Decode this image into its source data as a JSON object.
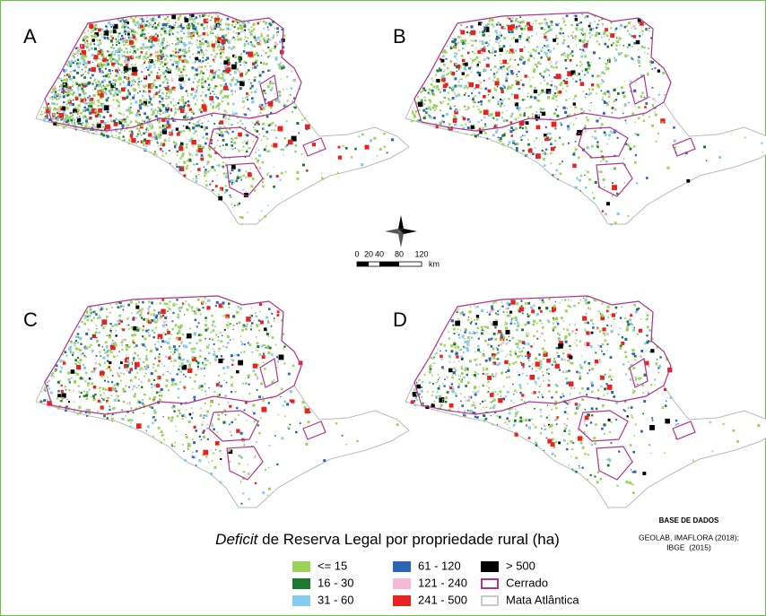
{
  "panels": [
    {
      "label": "A",
      "density": 2600
    },
    {
      "label": "B",
      "density": 1300
    },
    {
      "label": "C",
      "density": 1200
    },
    {
      "label": "D",
      "density": 1100
    }
  ],
  "scale_bar": {
    "labels": [
      "0",
      "20",
      "40",
      "80",
      "120",
      "km"
    ]
  },
  "title": {
    "italic": "Deficit",
    "rest": " de Reserva Legal por propriedade rural (ha)"
  },
  "source": {
    "heading": "BASE DE DADOS",
    "lines": [
      "GEOLAB, IMAFLORA (2018);",
      "IBGE  (2015)"
    ]
  },
  "legend": [
    {
      "label": "<= 15",
      "color": "#9dd35a",
      "style": "fill"
    },
    {
      "label": "16 - 30",
      "color": "#1b7a30",
      "style": "fill"
    },
    {
      "label": "31 - 60",
      "color": "#86cbee",
      "style": "fill"
    },
    {
      "label": "61 - 120",
      "color": "#2f63b3",
      "style": "fill"
    },
    {
      "label": "121 - 240",
      "color": "#f5b8d8",
      "style": "fill"
    },
    {
      "label": "241 - 500",
      "color": "#e8231f",
      "style": "fill"
    },
    {
      "label": "> 500",
      "color": "#000000",
      "style": "fill"
    },
    {
      "label": "Cerrado",
      "color": "#b0358f",
      "style": "outline"
    },
    {
      "label": "Mata Atlântica",
      "color": "#c8c8c8",
      "style": "outline"
    }
  ]
}
